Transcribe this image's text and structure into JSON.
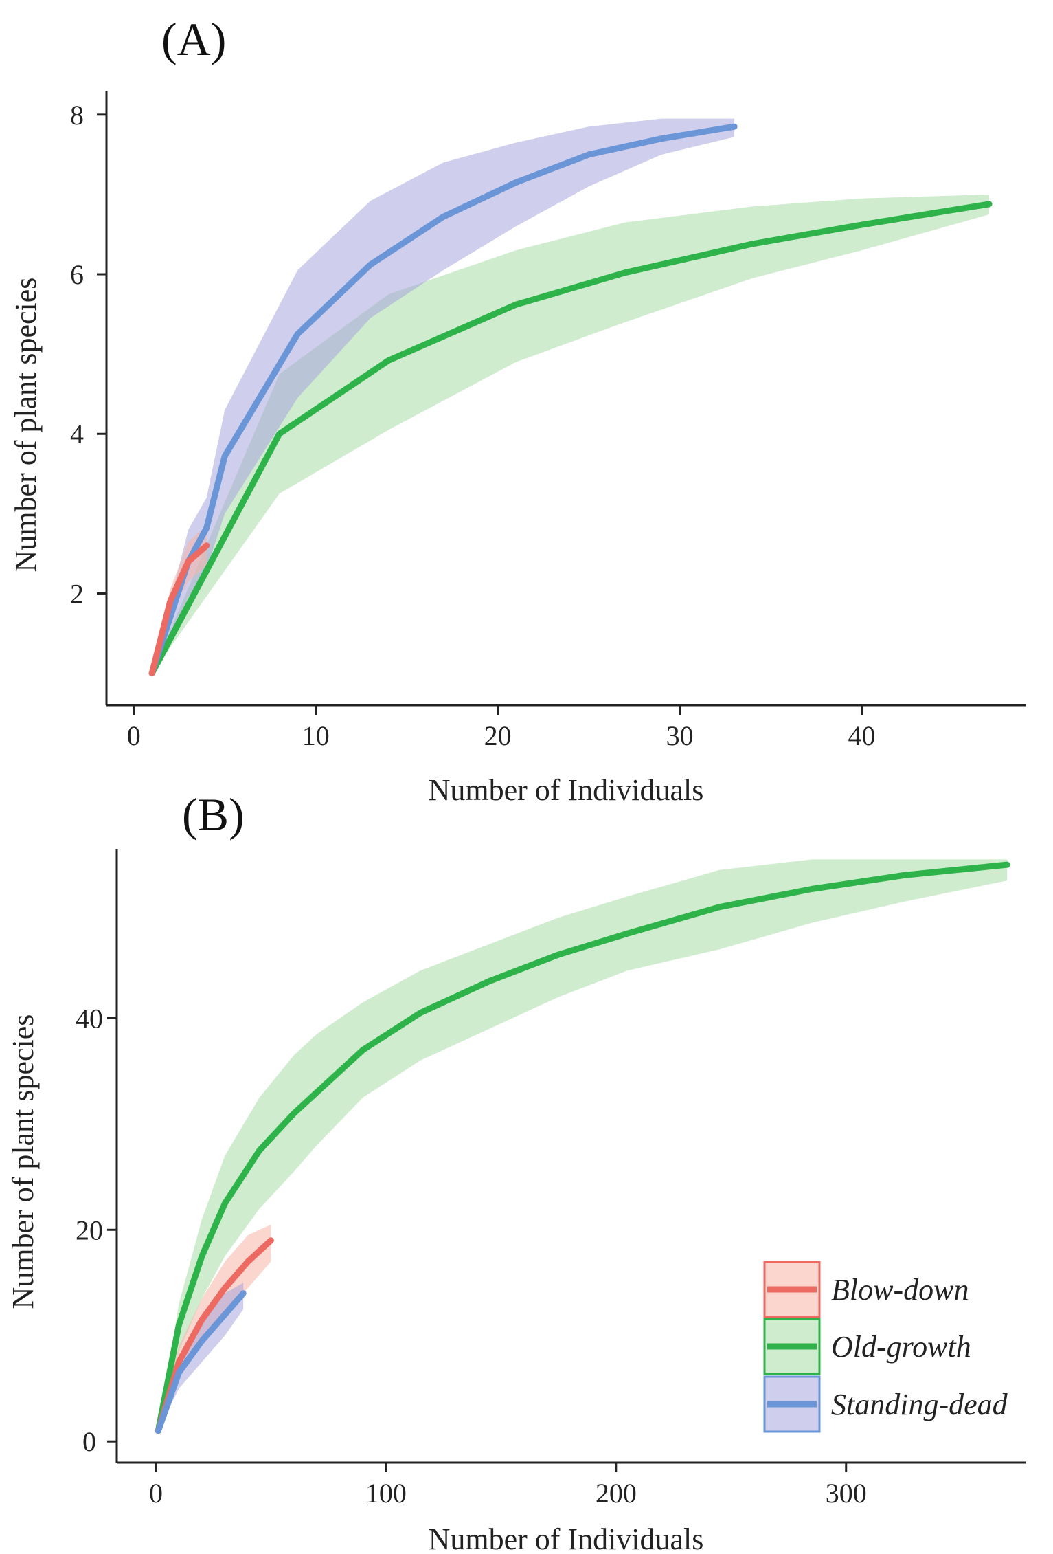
{
  "chart_data": [
    {
      "panel": "(A)",
      "type": "line",
      "xlabel": "Number of Individuals",
      "ylabel": "Number of plant species",
      "xlim": [
        -1.5,
        49
      ],
      "ylim": [
        0.6,
        8.3
      ],
      "xticks": [
        0,
        10,
        20,
        30,
        40
      ],
      "yticks": [
        2,
        4,
        6,
        8
      ],
      "series": [
        {
          "name": "Old-growth",
          "color": "#2db34a",
          "fill": "#a8dca6",
          "x": [
            1,
            8,
            14,
            21,
            27,
            34,
            40,
            47
          ],
          "y": [
            1,
            4,
            4.92,
            5.62,
            6.02,
            6.38,
            6.62,
            6.88
          ],
          "lower": [
            1,
            3.25,
            4.05,
            4.9,
            5.4,
            5.95,
            6.3,
            6.75
          ],
          "upper": [
            1,
            4.75,
            5.75,
            6.3,
            6.65,
            6.85,
            6.95,
            7.0
          ]
        },
        {
          "name": "Standing-dead",
          "color": "#6a95d6",
          "fill": "#a8a6dc",
          "x": [
            1,
            3,
            4,
            5,
            9,
            13,
            17,
            21,
            25,
            29,
            33
          ],
          "y": [
            1,
            2.4,
            2.82,
            3.72,
            5.25,
            6.12,
            6.72,
            7.15,
            7.5,
            7.7,
            7.85
          ],
          "lower": [
            1,
            1.95,
            2.3,
            3.0,
            4.45,
            5.45,
            6.05,
            6.6,
            7.1,
            7.5,
            7.72
          ],
          "upper": [
            1,
            2.8,
            3.2,
            4.3,
            6.05,
            6.92,
            7.4,
            7.65,
            7.85,
            7.95,
            7.95
          ]
        },
        {
          "name": "Blow-down",
          "color": "#ec6a61",
          "fill": "#f5b5a8",
          "x": [
            1,
            2,
            3,
            4
          ],
          "y": [
            1,
            1.9,
            2.4,
            2.6
          ],
          "lower": [
            1,
            1.75,
            2.15,
            2.35
          ],
          "upper": [
            1,
            2.05,
            2.65,
            2.85
          ]
        }
      ]
    },
    {
      "panel": "(B)",
      "type": "line",
      "xlabel": "Number of Individuals",
      "ylabel": "Number of plant species",
      "xlim": [
        -17,
        378
      ],
      "ylim": [
        -2,
        56
      ],
      "xticks": [
        0,
        100,
        200,
        300
      ],
      "yticks": [
        0,
        20,
        40
      ],
      "legend": {
        "position": "bottom-right",
        "entries": [
          "Blow-down",
          "Old-growth",
          "Standing-dead"
        ]
      },
      "series": [
        {
          "name": "Old-growth",
          "color": "#2db34a",
          "fill": "#a8dca6",
          "x": [
            1,
            10,
            20,
            30,
            45,
            60,
            70,
            90,
            115,
            145,
            175,
            205,
            245,
            285,
            325,
            370
          ],
          "y": [
            1,
            11,
            17.5,
            22.5,
            27.5,
            31,
            33,
            37,
            40.5,
            43.5,
            46,
            48,
            50.5,
            52.2,
            53.5,
            54.5
          ],
          "lower": [
            1,
            8.5,
            13.5,
            17.5,
            22,
            25.5,
            28,
            32.5,
            36,
            39,
            42,
            44.5,
            46.5,
            49,
            51,
            53
          ],
          "upper": [
            1,
            13,
            21,
            27,
            32.5,
            36.5,
            38.5,
            41.5,
            44.5,
            47,
            49.5,
            51.5,
            54,
            55,
            55,
            55
          ]
        },
        {
          "name": "Blow-down",
          "color": "#ec6a61",
          "fill": "#f5b5a8",
          "x": [
            1,
            10,
            20,
            30,
            40,
            50
          ],
          "y": [
            1,
            7.5,
            11.5,
            14.5,
            17,
            19
          ],
          "lower": [
            1,
            6,
            9.5,
            12,
            14.5,
            17
          ],
          "upper": [
            1,
            9,
            13.5,
            17,
            19.5,
            20.5
          ]
        },
        {
          "name": "Standing-dead",
          "color": "#6a95d6",
          "fill": "#a8a6dc",
          "x": [
            1,
            10,
            20,
            30,
            38
          ],
          "y": [
            1,
            6.5,
            9.5,
            12,
            14
          ],
          "lower": [
            1,
            5,
            7.5,
            10,
            12.5
          ],
          "upper": [
            1,
            8,
            11.5,
            14,
            15
          ]
        }
      ]
    }
  ]
}
